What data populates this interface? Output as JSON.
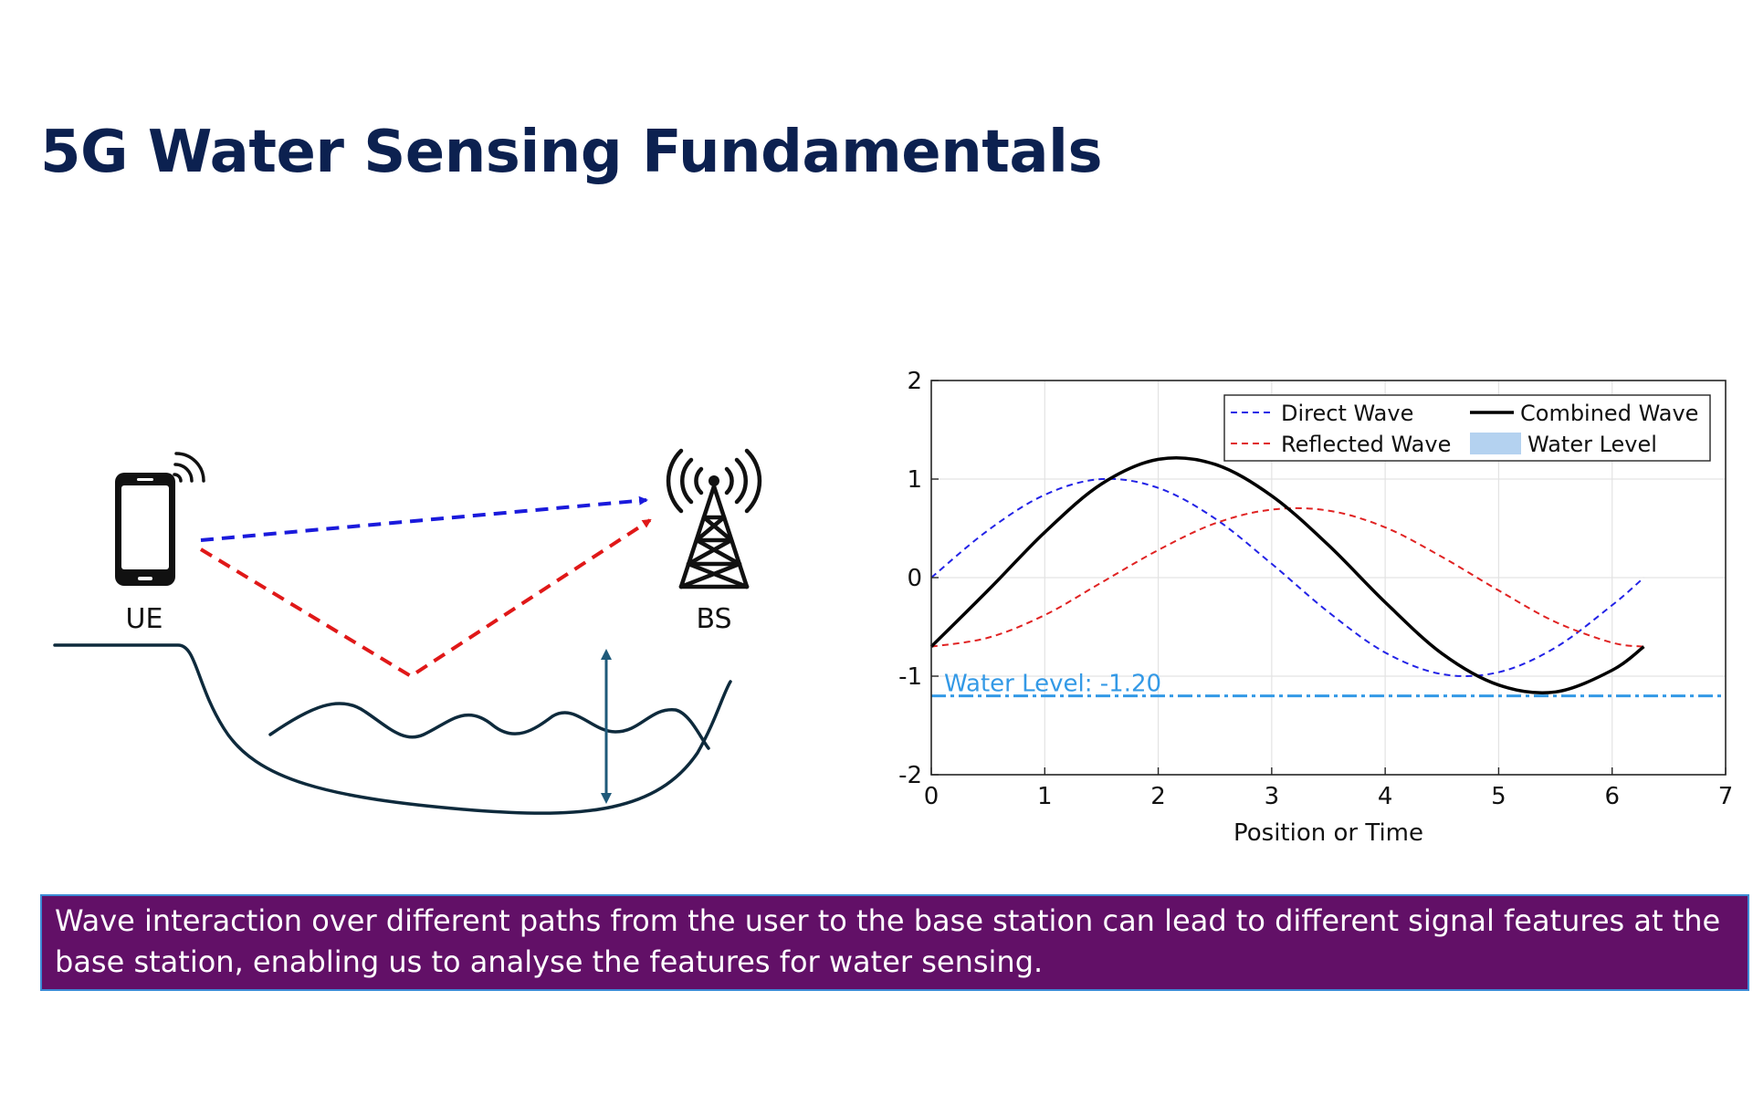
{
  "slide": {
    "title": "5G Water Sensing Fundamentals",
    "caption": "Wave interaction over different paths from the user to the base station can lead to different signal features at the base station, enabling us to analyse the features for water sensing."
  },
  "diagram": {
    "ue_label": "UE",
    "bs_label": "BS",
    "colors": {
      "direct_path": "#1a1adc",
      "reflected_path": "#e01818",
      "terrain": "#0e2a3c",
      "level_arrow": "#1f5a7a"
    },
    "icons": [
      "phone-icon",
      "signal-waves-icon",
      "cell-tower-icon",
      "double-arrow-icon"
    ]
  },
  "chart_data": {
    "type": "line",
    "title": "",
    "xlabel": "Position or Time",
    "ylabel": "",
    "xlim": [
      0,
      7
    ],
    "ylim": [
      -2,
      2
    ],
    "xticks": [
      0,
      1,
      2,
      3,
      4,
      5,
      6,
      7
    ],
    "yticks": [
      2,
      1,
      0,
      -1,
      -2
    ],
    "grid": true,
    "legend_position": "top-right",
    "x": [
      0,
      0.5,
      1,
      1.5,
      2,
      2.5,
      3,
      3.5,
      4,
      4.5,
      5,
      5.5,
      6,
      6.28
    ],
    "series": [
      {
        "name": "Direct Wave",
        "style": "dashed",
        "color": "#2323e6",
        "values": [
          0.0,
          0.48,
          0.84,
          1.0,
          0.91,
          0.6,
          0.14,
          -0.35,
          -0.76,
          -0.98,
          -0.96,
          -0.71,
          -0.28,
          0.0
        ]
      },
      {
        "name": "Reflected Wave",
        "style": "dashed",
        "color": "#e02222",
        "values": [
          -0.7,
          -0.61,
          -0.38,
          -0.05,
          0.28,
          0.55,
          0.69,
          0.68,
          0.51,
          0.21,
          -0.13,
          -0.45,
          -0.66,
          -0.7
        ]
      },
      {
        "name": "Combined Wave",
        "style": "solid",
        "color": "#000000",
        "values": [
          -0.7,
          -0.13,
          0.46,
          0.95,
          1.2,
          1.15,
          0.83,
          0.33,
          -0.25,
          -0.77,
          -1.09,
          -1.16,
          -0.94,
          -0.7
        ]
      }
    ],
    "water_level": {
      "name": "Water Level",
      "value": -1.2,
      "annotation": "Water Level: -1.20",
      "color": "#3399e6",
      "legend_color": "#b4d2f0"
    }
  }
}
